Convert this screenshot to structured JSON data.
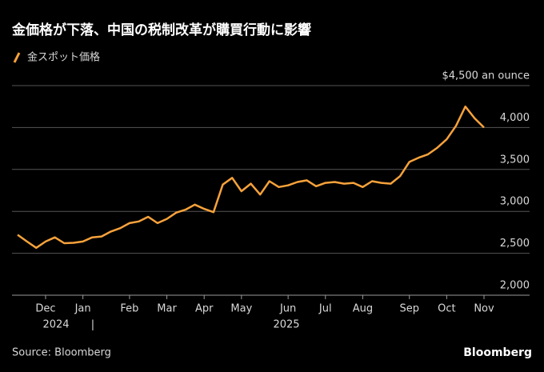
{
  "chart_data": {
    "type": "line",
    "title": "金価格が下落、中国の税制改革が購買行動に影響",
    "categories": [
      null,
      null,
      null,
      "Dec",
      null,
      null,
      null,
      "Jan",
      null,
      null,
      null,
      null,
      "Feb",
      null,
      null,
      null,
      "Mar",
      null,
      null,
      null,
      "Apr",
      null,
      null,
      null,
      "May",
      null,
      null,
      null,
      null,
      "Jun",
      null,
      null,
      null,
      "Jul",
      null,
      null,
      null,
      "Aug",
      null,
      null,
      null,
      null,
      "Sep",
      null,
      null,
      null,
      "Oct",
      null,
      null,
      null,
      "Nov"
    ],
    "years": [
      "2024",
      "2025"
    ],
    "series": [
      {
        "name": "金スポット価格",
        "color": "#f7a23b",
        "values": [
          2720,
          2640,
          2565,
          2640,
          2690,
          2620,
          2625,
          2640,
          2690,
          2700,
          2760,
          2800,
          2860,
          2880,
          2935,
          2860,
          2910,
          2985,
          3020,
          3080,
          3030,
          2990,
          3320,
          3400,
          3240,
          3330,
          3200,
          3360,
          3290,
          3310,
          3350,
          3370,
          3300,
          3340,
          3350,
          3330,
          3340,
          3290,
          3360,
          3340,
          3330,
          3420,
          3590,
          3640,
          3680,
          3760,
          3860,
          4020,
          4250,
          4110,
          4000
        ]
      }
    ],
    "ylim": [
      2000,
      4500
    ],
    "yticks": [
      {
        "value": 2000,
        "label": "2,000"
      },
      {
        "value": 2500,
        "label": "2,500"
      },
      {
        "value": 3000,
        "label": "3,000"
      },
      {
        "value": 3500,
        "label": "3,500"
      },
      {
        "value": 4000,
        "label": "4,000"
      },
      {
        "value": 4500,
        "label": "$4,500 an ounce"
      }
    ],
    "grid": true,
    "source": "Source: Bloomberg",
    "brand": "Bloomberg"
  }
}
